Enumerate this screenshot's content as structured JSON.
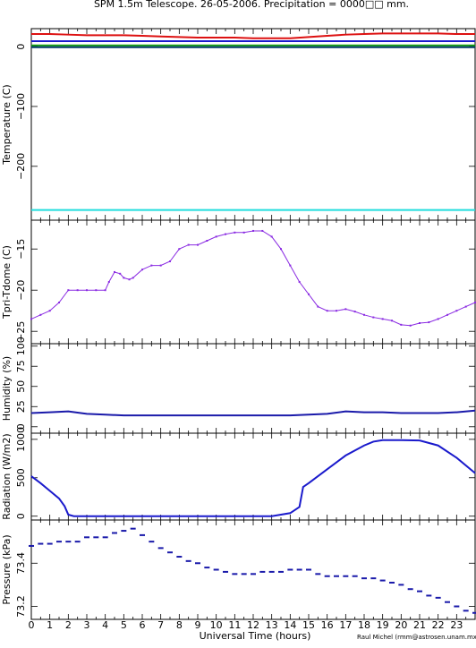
{
  "title": "SPM 1.5m Telescope. 26-05-2006. Precipitation = 0000□□ mm.",
  "credit": "Raul Michel (rmm@astrosen.unam.mx)",
  "x_axis": {
    "label": "Universal Time (hours)",
    "range": [
      0,
      24
    ],
    "tick_labels": [
      "0",
      "1",
      "2",
      "3",
      "4",
      "5",
      "6",
      "7",
      "8",
      "9",
      "10",
      "11",
      "12",
      "13",
      "14",
      "15",
      "16",
      "17",
      "18",
      "19",
      "20",
      "21",
      "22",
      "23"
    ]
  },
  "chart_data": [
    {
      "type": "line",
      "ylabel": "Temperature (C)",
      "ylim": [
        -290,
        30
      ],
      "yticks": [
        0,
        -100,
        -200
      ],
      "ytick_labels": [
        "0",
        "−100",
        "−200"
      ],
      "series": [
        {
          "color": "#dd1111",
          "x": [
            0,
            1,
            2,
            3,
            4,
            5,
            6,
            7,
            8,
            9,
            10,
            11,
            12,
            13,
            14,
            15,
            16,
            17,
            18,
            19,
            20,
            21,
            22,
            23,
            24
          ],
          "values": [
            21,
            21,
            20,
            19,
            19,
            19,
            18,
            17,
            16,
            15,
            15,
            15,
            14,
            14,
            14,
            16,
            18,
            20,
            21,
            22,
            22,
            22,
            22,
            21,
            21
          ]
        },
        {
          "color": "#1a1acc",
          "x": [
            0,
            2,
            4,
            6,
            8,
            10,
            12,
            14,
            16,
            18,
            20,
            22,
            24
          ],
          "values": [
            9,
            9,
            9,
            9,
            9,
            9,
            9,
            9,
            9,
            9,
            9,
            9,
            9
          ]
        },
        {
          "color": "#119911",
          "x": [
            0,
            2,
            4,
            6,
            8,
            10,
            12,
            14,
            16,
            18,
            20,
            22,
            24
          ],
          "values": [
            2,
            2,
            2,
            2,
            2,
            2,
            2,
            2,
            2,
            2,
            2,
            2,
            2
          ]
        },
        {
          "color": "#003a66",
          "x": [
            0,
            2,
            4,
            6,
            8,
            10,
            12,
            14,
            16,
            18,
            20,
            22,
            24
          ],
          "values": [
            -1,
            -1,
            -1,
            -1,
            -1,
            -1,
            -1,
            -1,
            -1,
            -1,
            -1,
            -1,
            -1
          ]
        },
        {
          "color": "#22dddd",
          "x": [
            0,
            2,
            4,
            6,
            8,
            10,
            12,
            14,
            16,
            18,
            20,
            22,
            24
          ],
          "values": [
            -273,
            -273,
            -273,
            -273,
            -273,
            -273,
            -273,
            -273,
            -273,
            -273,
            -273,
            -273,
            -273
          ]
        }
      ]
    },
    {
      "type": "scatter",
      "ylabel": "Tpri-Tdome (C)",
      "ylim": [
        -26.5,
        -11.5
      ],
      "yticks": [
        -25,
        -20,
        -15
      ],
      "ytick_labels": [
        "−25",
        "−20",
        "−15"
      ],
      "series": [
        {
          "color": "#8a2be2",
          "x": [
            0,
            0.5,
            1,
            1.5,
            2,
            2.5,
            3,
            3.5,
            4,
            4.2,
            4.5,
            4.8,
            5,
            5.3,
            5.5,
            6,
            6.5,
            7,
            7.5,
            8,
            8.5,
            9,
            9.5,
            10,
            10.5,
            11,
            11.5,
            12,
            12.5,
            13,
            13.5,
            14,
            14.5,
            15,
            15.5,
            16,
            16.5,
            17,
            17.5,
            18,
            18.5,
            19,
            19.5,
            20,
            20.5,
            21,
            21.5,
            22,
            22.5,
            23,
            23.5,
            24
          ],
          "values": [
            -23.5,
            -23,
            -22.5,
            -21.5,
            -20,
            -20,
            -20,
            -20,
            -20,
            -19,
            -17.8,
            -18,
            -18.5,
            -18.7,
            -18.5,
            -17.5,
            -17,
            -17,
            -16.5,
            -15,
            -14.5,
            -14.5,
            -14,
            -13.5,
            -13.2,
            -13,
            -13,
            -12.8,
            -12.8,
            -13.5,
            -15,
            -17,
            -19,
            -20.5,
            -22,
            -22.5,
            -22.5,
            -22.3,
            -22.6,
            -23,
            -23.3,
            -23.5,
            -23.7,
            -24.2,
            -24.3,
            -24,
            -23.9,
            -23.5,
            -23,
            -22.5,
            -22,
            -21.5
          ]
        }
      ]
    },
    {
      "type": "line",
      "ylabel": "Humidity (%)",
      "ylim": [
        -8,
        103
      ],
      "yticks": [
        0,
        25,
        50,
        75,
        100
      ],
      "ytick_labels": [
        "0",
        "25",
        "50",
        "75",
        "100"
      ],
      "series": [
        {
          "color": "#1a1aaa",
          "x": [
            0,
            1,
            2,
            3,
            4,
            5,
            6,
            7,
            8,
            9,
            10,
            11,
            12,
            13,
            14,
            15,
            16,
            17,
            18,
            19,
            20,
            21,
            22,
            23,
            24
          ],
          "values": [
            17,
            18,
            19,
            16,
            15,
            14,
            14,
            14,
            14,
            14,
            14,
            14,
            14,
            14,
            14,
            15,
            16,
            19,
            18,
            18,
            17,
            17,
            17,
            18,
            20
          ]
        }
      ]
    },
    {
      "type": "line",
      "ylabel": "Radiation (W/m2)",
      "ylim": [
        -50,
        1080
      ],
      "yticks": [
        0,
        500,
        1000
      ],
      "ytick_labels": [
        "0",
        "500",
        "1000"
      ],
      "series": [
        {
          "color": "#1a1acc",
          "x": [
            0,
            0.5,
            1,
            1.5,
            1.8,
            2,
            2.3,
            3,
            4,
            6,
            8,
            10,
            12,
            13,
            14,
            14.5,
            14.7,
            15,
            16,
            17,
            18,
            18.5,
            19,
            20,
            21,
            22,
            23,
            24
          ],
          "values": [
            520,
            430,
            330,
            230,
            130,
            20,
            0,
            0,
            0,
            0,
            0,
            0,
            0,
            0,
            40,
            120,
            380,
            430,
            610,
            790,
            920,
            970,
            990,
            990,
            985,
            920,
            760,
            560
          ]
        }
      ]
    },
    {
      "type": "scatter",
      "ylabel": "Pressure (kPa)",
      "ylim": [
        73.14,
        73.6
      ],
      "yticks": [
        73.2,
        73.4
      ],
      "ytick_labels": [
        "73.2",
        "73.4"
      ],
      "series": [
        {
          "color": "#1a1aaa",
          "x": [
            0,
            0.5,
            1,
            1.5,
            2,
            2.5,
            3,
            3.5,
            4,
            4.5,
            5,
            5.5,
            6,
            6.5,
            7,
            7.5,
            8,
            8.5,
            9,
            9.5,
            10,
            10.5,
            11,
            11.5,
            12,
            12.5,
            13,
            13.5,
            14,
            14.5,
            15,
            15.5,
            16,
            16.5,
            17,
            17.5,
            18,
            18.5,
            19,
            19.5,
            20,
            20.5,
            21,
            21.5,
            22,
            22.5,
            23,
            23.5,
            24
          ],
          "values": [
            73.48,
            73.49,
            73.49,
            73.5,
            73.5,
            73.5,
            73.52,
            73.52,
            73.52,
            73.54,
            73.55,
            73.56,
            73.53,
            73.5,
            73.47,
            73.45,
            73.43,
            73.41,
            73.4,
            73.38,
            73.37,
            73.36,
            73.35,
            73.35,
            73.35,
            73.36,
            73.36,
            73.36,
            73.37,
            73.37,
            73.37,
            73.35,
            73.34,
            73.34,
            73.34,
            73.34,
            73.33,
            73.33,
            73.32,
            73.31,
            73.3,
            73.28,
            73.27,
            73.25,
            73.24,
            73.22,
            73.2,
            73.18,
            73.17
          ]
        }
      ]
    }
  ]
}
